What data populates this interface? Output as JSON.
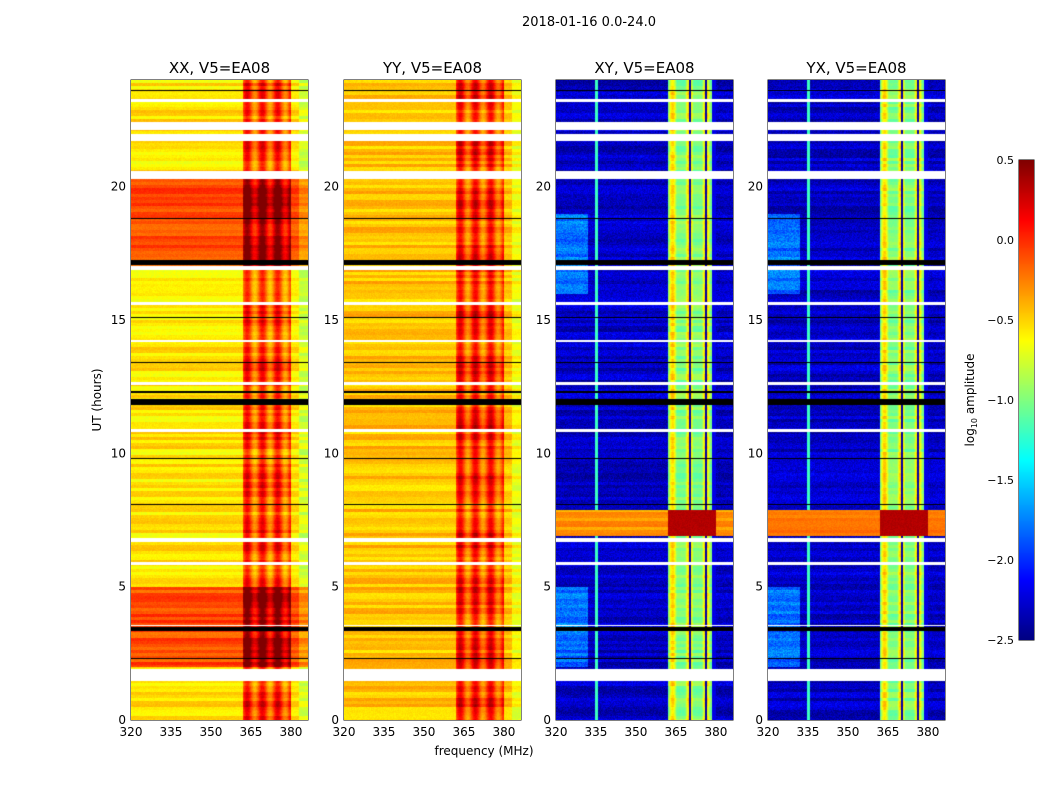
{
  "chart_data": {
    "type": "heatmap",
    "suptitle": "2018-01-16 0.0-24.0",
    "xlabel": "frequency (MHz)",
    "ylabel": "UT (hours)",
    "xlim": [
      320,
      386.4
    ],
    "ylim": [
      0,
      24
    ],
    "xticks": [
      "320",
      "335",
      "350",
      "365",
      "380"
    ],
    "yticks": [
      "0",
      "5",
      "10",
      "15",
      "20"
    ],
    "xtick_values": [
      320,
      335,
      350,
      365,
      380
    ],
    "ytick_values": [
      0,
      5,
      10,
      15,
      20
    ],
    "colorbar": {
      "label_prefix": "log",
      "label_sub": "10",
      "label_suffix": " amplitude",
      "range": [
        -2.5,
        0.5
      ],
      "ticks": [
        "0.5",
        "0.0",
        "−0.5",
        "−1.0",
        "−1.5",
        "−2.0",
        "−2.5"
      ],
      "tick_values": [
        0.5,
        0,
        -0.5,
        -1,
        -1.5,
        -2,
        -2.5
      ],
      "colormap": "jet"
    },
    "panels": [
      {
        "title": "XX, V5=EA08",
        "kind": "parallel",
        "base": -0.55,
        "band_level": -0.1,
        "hot_ranges_hours": [
          [
            17.0,
            20.3
          ],
          [
            2.0,
            5.0
          ]
        ],
        "hot_level": -0.05
      },
      {
        "title": "YY, V5=EA08",
        "kind": "parallel",
        "base": -0.45,
        "band_level": -0.05,
        "hot_ranges_hours": [],
        "hot_level": -0.3
      },
      {
        "title": "XY, V5=EA08",
        "kind": "cross",
        "base": -2.3,
        "band_level": -1.0,
        "hot_ranges_hours": [
          [
            6.9,
            7.9
          ]
        ],
        "hot_level": -0.3
      },
      {
        "title": "YX, V5=EA08",
        "kind": "cross",
        "base": -2.3,
        "band_level": -1.0,
        "hot_ranges_hours": [
          [
            6.9,
            7.9
          ]
        ],
        "hot_level": -0.3
      }
    ],
    "band_mhz": [
      362,
      380
    ],
    "flagged_white_hours": [
      [
        1.5,
        1.95
      ],
      [
        22.15,
        22.45
      ],
      [
        21.75,
        22.0
      ],
      [
        20.3,
        20.6
      ],
      [
        16.9,
        17.05
      ],
      [
        12.6,
        12.7
      ],
      [
        10.8,
        10.95
      ],
      [
        6.7,
        6.85
      ],
      [
        5.85,
        5.95
      ],
      [
        3.55,
        3.6
      ],
      [
        23.2,
        23.3
      ],
      [
        15.6,
        15.7
      ],
      [
        14.2,
        14.25
      ]
    ],
    "flagged_black_hours": [
      [
        11.85,
        12.05
      ],
      [
        17.1,
        17.25
      ],
      [
        3.35,
        3.5
      ],
      [
        12.3,
        12.35
      ],
      [
        8.1,
        8.13
      ],
      [
        13.4,
        13.43
      ],
      [
        2.3,
        2.33
      ],
      [
        18.8,
        18.83
      ],
      [
        15.1,
        15.13
      ],
      [
        23.6,
        23.63
      ],
      [
        9.8,
        9.83
      ]
    ]
  }
}
